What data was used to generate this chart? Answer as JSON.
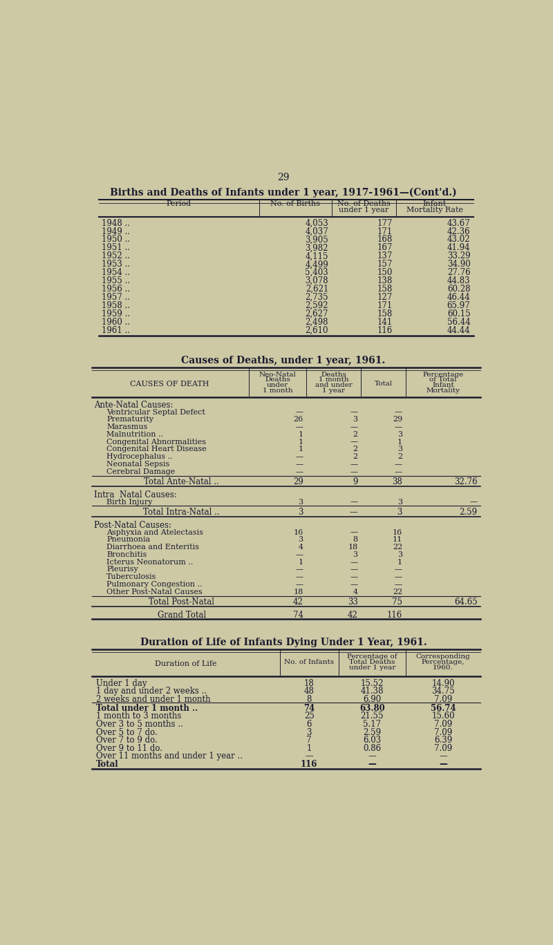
{
  "page_number": "29",
  "bg_color": "#cdc9a5",
  "text_color": "#1a1a2e",
  "title1": "Births and Deaths of Infants under 1 year, 1917-1961—(Cont'd.)",
  "table1_rows": [
    [
      "1948 ..",
      "4,053",
      "177",
      "43.67"
    ],
    [
      "1949 ..",
      "4,037",
      "171",
      "42.36"
    ],
    [
      "1950 ..",
      "3,905",
      "168",
      "43.02"
    ],
    [
      "1951 ..",
      "3,982",
      "167",
      "41.94"
    ],
    [
      "1952 ..",
      "4,115",
      "137",
      "33.29"
    ],
    [
      "1953 ..",
      "4,499",
      "157",
      "34.90"
    ],
    [
      "1954 ..",
      "5,403",
      "150",
      "27.76"
    ],
    [
      "1955 ..",
      "3,078",
      "138",
      "44.83"
    ],
    [
      "1956 ..",
      "2,621",
      "158",
      "60.28"
    ],
    [
      "1957 ..",
      "2,735",
      "127",
      "46.44"
    ],
    [
      "1958 ..",
      "2,592",
      "171",
      "65.97"
    ],
    [
      "1959 ..",
      "2,627",
      "158",
      "60.15"
    ],
    [
      "1960 ..",
      "2,498",
      "141",
      "56.44"
    ],
    [
      "1961 ..",
      "2,610",
      "116",
      "44.44"
    ]
  ],
  "title2": "Causes of Deaths, under 1 year, 1961.",
  "table2_sections": [
    {
      "section_label": "Ante-Natal Causes:",
      "rows": [
        [
          "Ventricular Septal Defect",
          "—",
          "—",
          "—",
          ""
        ],
        [
          "Prematurity",
          "26",
          "3",
          "29",
          ""
        ],
        [
          "Marasmus",
          "—",
          "—",
          "—",
          ""
        ],
        [
          "Malnutrition ..",
          "1",
          "2",
          "3",
          ""
        ],
        [
          "Congenital Abnormalities",
          "1",
          "—",
          "1",
          ""
        ],
        [
          "Congenital Heart Disease",
          "1",
          "2",
          "3",
          ""
        ],
        [
          "Hydrocephalus ..",
          "—",
          "2",
          "2",
          ""
        ],
        [
          "Neonatal Sepsis",
          "—",
          "—",
          "—",
          ""
        ],
        [
          "Cerebral Damage",
          "—",
          "—",
          "—",
          ""
        ]
      ],
      "total_row": [
        "Total Ante-Natal ..",
        "29",
        "9",
        "38",
        "32.76"
      ]
    },
    {
      "section_label": "Intra  Natal Causes:",
      "rows": [
        [
          "Birth Injury",
          "3",
          "—",
          "3",
          "—"
        ]
      ],
      "total_row": [
        "Total Intra-Natal ..",
        "3",
        "—",
        "3",
        "2.59"
      ]
    },
    {
      "section_label": "Post-Natal Causes:",
      "rows": [
        [
          "Asphyxia and Atelectasis",
          "16",
          "—",
          "16",
          ""
        ],
        [
          "Pneumonia",
          "3",
          "8",
          "11",
          ""
        ],
        [
          "Diarrhoea and Enteritis",
          "4",
          "18",
          "22",
          ""
        ],
        [
          "Bronchitis",
          "—",
          "3",
          "3",
          ""
        ],
        [
          "Icterus Neonatorum ..",
          "1",
          "—",
          "1",
          ""
        ],
        [
          "Pleurisy",
          "—",
          "—",
          "—",
          ""
        ],
        [
          "Tuberculosis",
          "—",
          "—",
          "—",
          ""
        ],
        [
          "Pulmonary Congestion ..",
          "—",
          "—",
          "—",
          ""
        ],
        [
          "Other Post-Natal Causes",
          "18",
          "4",
          "22",
          ""
        ]
      ],
      "total_row": [
        "Total Post-Natal",
        "42",
        "33",
        "75",
        "64.65"
      ]
    }
  ],
  "table2_grand_total": [
    "Grand Total",
    "74",
    "42",
    "116",
    ""
  ],
  "title3": "Duration of Life of Infants Dying Under 1 Year, 1961.",
  "table3_rows": [
    [
      "Under 1 day",
      "18",
      "15.52",
      "14.90"
    ],
    [
      "1 day and under 2 weeks ..",
      "48",
      "41.38",
      "34.75"
    ],
    [
      "2 weeks and under 1 month",
      "8",
      "6.90",
      "7.09"
    ],
    [
      "Total under 1 month ..",
      "74",
      "63.80",
      "56.74"
    ],
    [
      "1 month to 3 months",
      "25",
      "21.55",
      "15.60"
    ],
    [
      "Over 3 to 5 months ..",
      "6",
      "5.17",
      "7.09"
    ],
    [
      "Over 5 to 7 do.",
      "3",
      "2.59",
      "7.09"
    ],
    [
      "Over 7 to 9 do.",
      "7",
      "6.03",
      "6.39"
    ],
    [
      "Over 9 to 11 do.",
      "1",
      "0.86",
      "7.09"
    ],
    [
      "Over 11 months and under 1 year ..",
      "—",
      "—",
      "—"
    ],
    [
      "Total",
      "116",
      "—",
      "—"
    ]
  ]
}
